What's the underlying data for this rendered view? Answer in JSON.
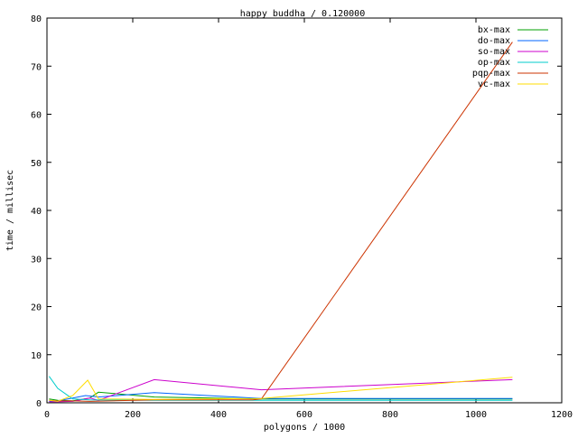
{
  "chart_data": {
    "type": "line",
    "title": "happy buddha / 0.120000",
    "xlabel": "polygons / 1000",
    "ylabel": "time / millisec",
    "xlim": [
      0,
      1200
    ],
    "ylim": [
      0,
      80
    ],
    "xticks": [
      0,
      200,
      400,
      600,
      800,
      1000,
      1200
    ],
    "yticks": [
      0,
      10,
      20,
      30,
      40,
      50,
      60,
      70,
      80
    ],
    "legend_position": "top-right",
    "grid": false,
    "series": [
      {
        "name": "bx-max",
        "color": "#00a000",
        "x": [
          5,
          25,
          60,
          100,
          120,
          250,
          500,
          1085
        ],
        "y": [
          0.8,
          0.5,
          0.4,
          1.0,
          2.2,
          1.2,
          0.8,
          0.8
        ]
      },
      {
        "name": "do-max",
        "color": "#0066ff",
        "x": [
          5,
          25,
          60,
          90,
          120,
          250,
          500,
          1085
        ],
        "y": [
          0.3,
          0.4,
          1.0,
          1.5,
          1.2,
          2.1,
          0.9,
          0.9
        ]
      },
      {
        "name": "so-max",
        "color": "#cc00cc",
        "x": [
          5,
          25,
          60,
          100,
          120,
          250,
          500,
          1085
        ],
        "y": [
          0.2,
          0.2,
          0.3,
          1.0,
          0.5,
          4.8,
          2.7,
          4.8
        ]
      },
      {
        "name": "op-max",
        "color": "#00cccc",
        "x": [
          5,
          25,
          60,
          100,
          250,
          500,
          1085
        ],
        "y": [
          5.5,
          3.0,
          0.8,
          0.6,
          0.5,
          0.5,
          0.5
        ]
      },
      {
        "name": "pqp-max",
        "color": "#cc3300",
        "x": [
          5,
          25,
          60,
          100,
          250,
          480,
          500,
          1085
        ],
        "y": [
          0.5,
          0.4,
          0.4,
          0.3,
          0.6,
          0.6,
          0.8,
          75.0
        ]
      },
      {
        "name": "vc-max",
        "color": "#ffdd00",
        "x": [
          5,
          25,
          60,
          95,
          120,
          250,
          500,
          1085
        ],
        "y": [
          0.5,
          0.3,
          1.5,
          4.7,
          0.8,
          0.7,
          0.9,
          5.3
        ]
      }
    ]
  }
}
